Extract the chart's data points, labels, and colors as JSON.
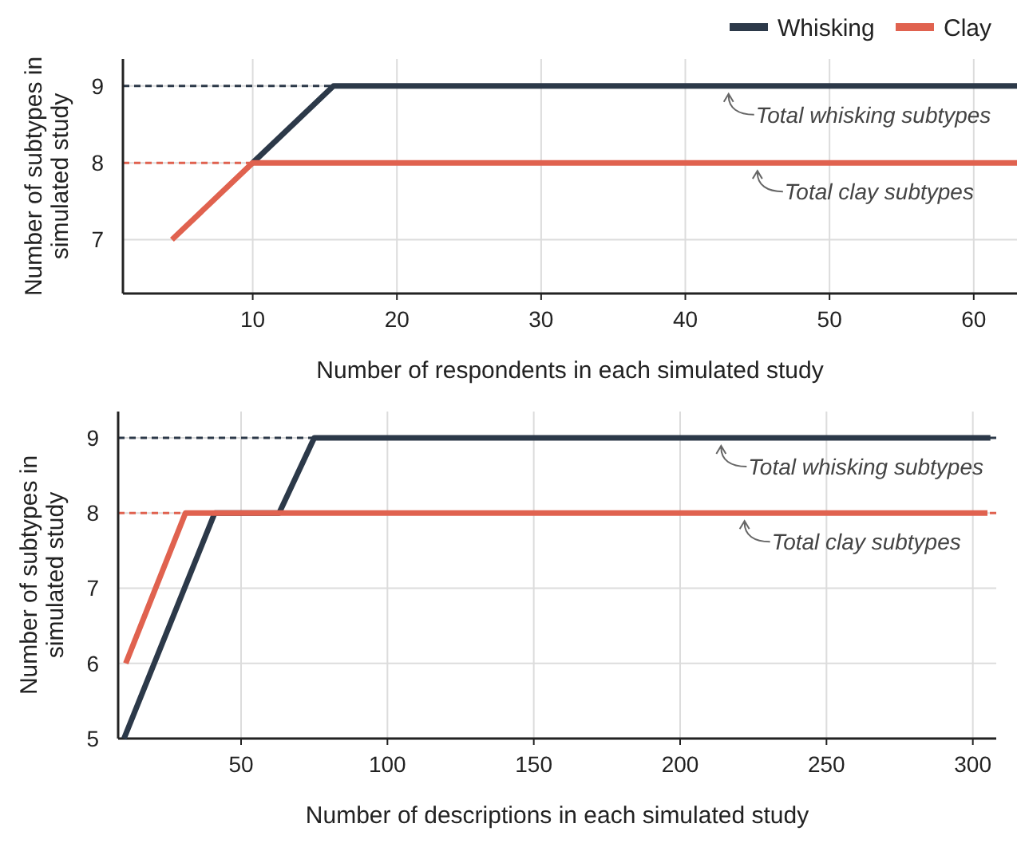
{
  "chart_data": [
    {
      "type": "line",
      "xlabel": "Number of respondents in each simulated study",
      "ylabel": "Number of subtypes in simulated study",
      "xlim": [
        1,
        63
      ],
      "ylim": [
        6.3,
        9.35
      ],
      "xticks": [
        10,
        20,
        30,
        40,
        50,
        60
      ],
      "yticks": [
        7,
        8,
        9
      ],
      "grid": true,
      "legend": "top right",
      "line_style": "solid",
      "marker": "none",
      "series": [
        {
          "name": "Whisking",
          "color": "#2c3949",
          "x": [
            10,
            15.6,
            63
          ],
          "values": [
            8,
            9,
            9
          ]
        },
        {
          "name": "Clay",
          "color": "#e0624f",
          "x": [
            4.4,
            10,
            63
          ],
          "values": [
            7,
            8,
            8
          ]
        }
      ],
      "ref_lines": [
        {
          "axis": "y",
          "value": 9,
          "color": "#2c3949",
          "line_style": "dashed"
        },
        {
          "axis": "y",
          "value": 8,
          "color": "#e0624f",
          "line_style": "dashed"
        }
      ],
      "annotations": [
        {
          "text": "Total whisking subtypes",
          "x": 43,
          "y": 9
        },
        {
          "text": "Total clay subtypes",
          "x": 45,
          "y": 8
        }
      ]
    },
    {
      "type": "line",
      "xlabel": "Number of descriptions in each simulated study",
      "ylabel": "Number of subtypes in simulated study",
      "xlim": [
        8,
        308
      ],
      "ylim": [
        5,
        9.35
      ],
      "xticks": [
        50,
        100,
        150,
        200,
        250,
        300
      ],
      "yticks": [
        5,
        6,
        7,
        8,
        9
      ],
      "grid": true,
      "line_style": "solid",
      "marker": "none",
      "series": [
        {
          "color": "#2c3949",
          "x": [
            10,
            41,
            63,
            75,
            306
          ],
          "values": [
            5,
            8,
            8,
            9,
            9
          ]
        },
        {
          "color": "#e0624f",
          "x": [
            10.6,
            31,
            305
          ],
          "values": [
            6,
            8,
            8
          ]
        }
      ],
      "ref_lines": [
        {
          "axis": "y",
          "value": 9,
          "color": "#2c3949",
          "line_style": "dashed"
        },
        {
          "axis": "y",
          "value": 8,
          "color": "#e0624f",
          "line_style": "dashed"
        }
      ],
      "annotations": [
        {
          "text": "Total whisking subtypes",
          "x": 214,
          "y": 9
        },
        {
          "text": "Total clay subtypes",
          "x": 222,
          "y": 8
        }
      ]
    }
  ]
}
